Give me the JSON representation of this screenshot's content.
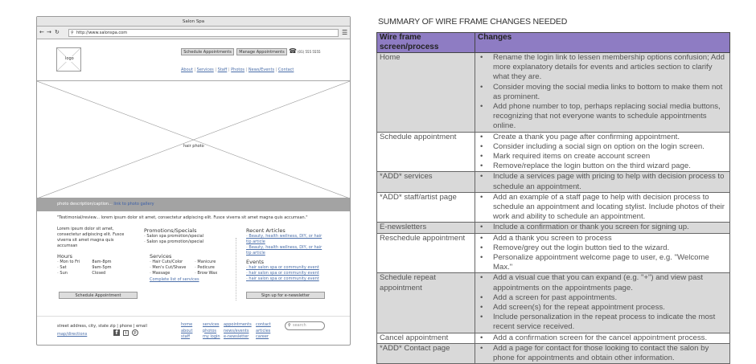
{
  "wireframe": {
    "window_title": "Salon Spa",
    "url": "http://www.salonspa.com",
    "logo": "logo",
    "buttons": {
      "schedule": "Schedule Appointments",
      "manage": "Manage Appointments"
    },
    "phone": "(01) 555 5555",
    "nav": [
      "About",
      "Services",
      "Staff",
      "Photos",
      "News/Events",
      "Contact"
    ],
    "hero_label": "hair photo",
    "caption": "photo description/caption...",
    "caption_link": "link to photo gallery",
    "testimonial": "\"Testimonial/review... lorem ipsum dolor sit amet, consectetur adipiscing elit. Fusce viverra sit amet magna quis accumsan.\"",
    "intro": "Lorem ipsum dolor sit amet, consectetur adipiscing elit. Fusce viverra sit amet magna quis accumsan",
    "promotions": {
      "heading": "Promotions/Specials",
      "items": [
        "Salon spa promotion/special",
        "Salon spa promotion/special"
      ]
    },
    "hours": {
      "heading": "Hours",
      "rows": [
        [
          "Mon to Fri",
          "8am-8pm"
        ],
        [
          "Sat",
          "9am-5pm"
        ],
        [
          "Sun",
          "Closed"
        ]
      ]
    },
    "services": {
      "heading": "Services",
      "col1": [
        "Hair Cuts/Color",
        "Men's Cut/Shave",
        "Massage"
      ],
      "col2": [
        "Manicure",
        "Pedicure",
        "Brow Wax"
      ],
      "link": "Complete list of services"
    },
    "articles": {
      "heading": "Recent Articles",
      "items": [
        "Beauty, health wellness, DIY, or hair tip article",
        "Beauty, health wellness, DIY, or hair tip article"
      ]
    },
    "events": {
      "heading": "Events",
      "items": [
        "hair salon spa or community event",
        "hair salon spa or community event",
        "hair salon spa or community event"
      ]
    },
    "schedule_button": "Schedule Appointment",
    "newsletter_button": "Sign up for e-newsletter",
    "footer": {
      "address": "street address, city, state zip | phone | email",
      "map_link": "map/directions",
      "links": [
        [
          "home",
          "about",
          "staff"
        ],
        [
          "services",
          "photos",
          "my login"
        ],
        [
          "appointments",
          "news/events",
          "e-newsletter"
        ],
        [
          "contact",
          "articles",
          "career"
        ]
      ],
      "search_placeholder": "search"
    }
  },
  "summary": {
    "title": "SUMMARY OF WIRE FRAME CHANGES NEEDED",
    "header_color": "#8e7cc3",
    "columns": [
      "Wire frame screen/process",
      "Changes"
    ],
    "rows": [
      {
        "screen": "Home",
        "changes": [
          "Rename the login link to lessen membership options confusion; Add more explanatory details for events and articles section to clarify what they are.",
          "Consider moving the social media links to bottom to make them not as prominent.",
          "Add phone number to top, perhaps replacing social media buttons, recognizing that not everyone wants to schedule appointments online."
        ]
      },
      {
        "screen": "Schedule appointment",
        "changes": [
          "Create a thank you page after confirming appointment.",
          "Consider including a social sign on option on the login screen.",
          "Mark required items on create account screen",
          "Remove/replace the login button on the third wizard page."
        ]
      },
      {
        "screen": "*ADD* services",
        "changes": [
          "Include a services page with pricing to help with decision process to schedule an appointment."
        ]
      },
      {
        "screen": "*ADD* staff/artist page",
        "changes": [
          "Add an example of a staff page to help with decision process to schedule an appointment and locating stylist. Include photos of their work and ability to schedule an appointment."
        ]
      },
      {
        "screen": "E-newsletters",
        "changes": [
          "Include a confirmation or thank you screen for signing up."
        ]
      },
      {
        "screen": "Reschedule appointment",
        "changes": [
          "Add a thank you screen to process",
          "Remove/grey out the login button tied to the wizard.",
          "Personalize appointment welcome page to user, e.g. \"Welcome Max.\""
        ]
      },
      {
        "screen": "Schedule repeat appointment",
        "changes": [
          "Add a visual cue that you can expand (e.g. \"+\") and view past appointments on the appointments page.",
          "Add a screen for past appointments.",
          "Add screen(s) for the repeat appointment process.",
          "Include personalization in the repeat process to indicate the most recent service received."
        ]
      },
      {
        "screen": "Cancel appointment",
        "changes": [
          "Add a confirmation screen for the cancel appointment process."
        ]
      },
      {
        "screen": "*ADD* Contact page",
        "changes": [
          "Add a page for contact for those looking to contact the salon by phone for appointments and obtain other information."
        ]
      }
    ]
  }
}
